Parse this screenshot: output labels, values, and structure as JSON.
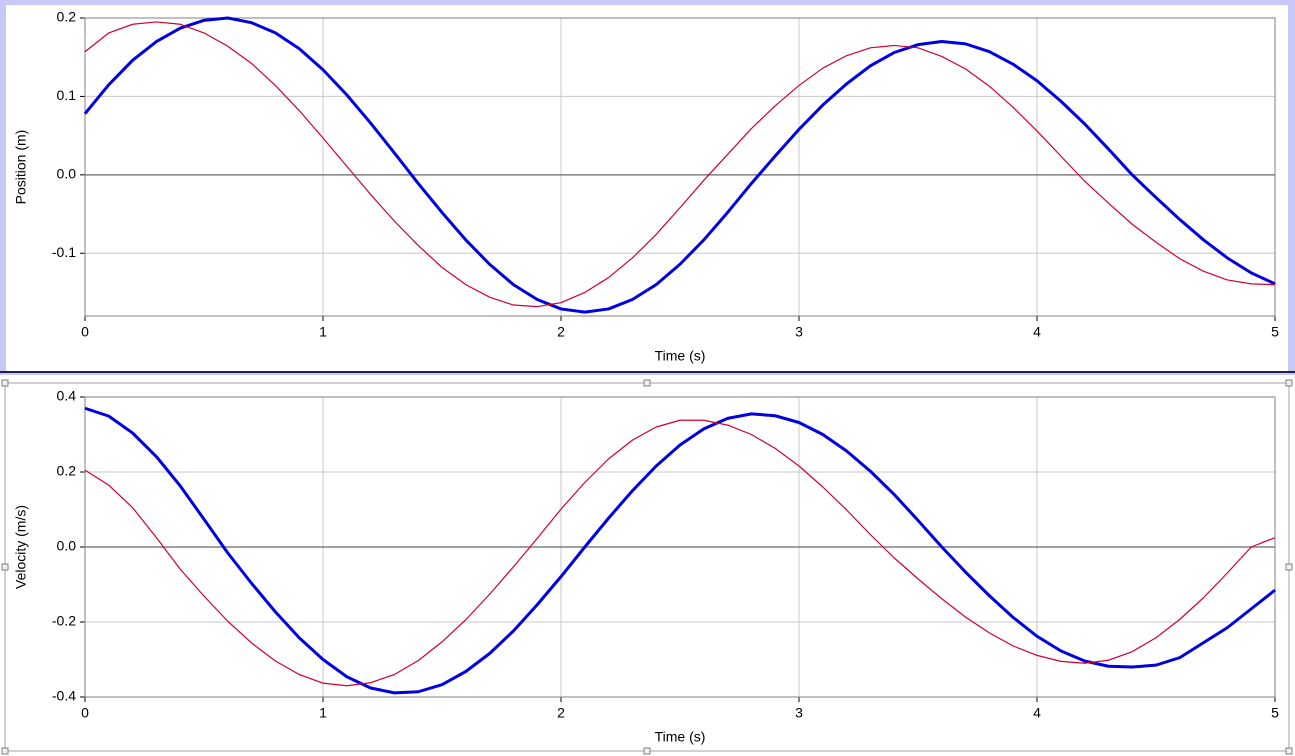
{
  "chart_data": [
    {
      "type": "line",
      "xlabel": "Time (s)",
      "ylabel": "Position (m)",
      "x": [
        0,
        0.1,
        0.2,
        0.3,
        0.4,
        0.5,
        0.6,
        0.7,
        0.8,
        0.9,
        1,
        1.1,
        1.2,
        1.3,
        1.4,
        1.5,
        1.6,
        1.7,
        1.8,
        1.9,
        2,
        2.1,
        2.2,
        2.3,
        2.4,
        2.5,
        2.6,
        2.7,
        2.8,
        2.9,
        3,
        3.1,
        3.2,
        3.3,
        3.4,
        3.5,
        3.6,
        3.7,
        3.8,
        3.9,
        4,
        4.1,
        4.2,
        4.3,
        4.4,
        4.5,
        4.6,
        4.7,
        4.8,
        4.9,
        5
      ],
      "series": [
        {
          "color": "#0000e0",
          "values": [
            0.078,
            0.115,
            0.146,
            0.17,
            0.187,
            0.197,
            0.2,
            0.194,
            0.181,
            0.161,
            0.134,
            0.102,
            0.066,
            0.028,
            -0.011,
            -0.048,
            -0.083,
            -0.114,
            -0.14,
            -0.159,
            -0.171,
            -0.175,
            -0.171,
            -0.159,
            -0.14,
            -0.114,
            -0.083,
            -0.048,
            -0.011,
            0.024,
            0.058,
            0.089,
            0.116,
            0.139,
            0.156,
            0.166,
            0.17,
            0.167,
            0.157,
            0.141,
            0.12,
            0.094,
            0.065,
            0.033,
            0,
            -0.029,
            -0.057,
            -0.083,
            -0.106,
            -0.125,
            -0.139
          ]
        },
        {
          "color": "#d00030",
          "values": [
            0.157,
            0.181,
            0.192,
            0.195,
            0.192,
            0.181,
            0.164,
            0.142,
            0.114,
            0.082,
            0.047,
            0.011,
            -0.025,
            -0.059,
            -0.09,
            -0.118,
            -0.14,
            -0.156,
            -0.166,
            -0.168,
            -0.163,
            -0.15,
            -0.131,
            -0.106,
            -0.076,
            -0.042,
            -0.007,
            0.026,
            0.059,
            0.088,
            0.114,
            0.136,
            0.152,
            0.162,
            0.165,
            0.162,
            0.151,
            0.135,
            0.113,
            0.086,
            0.056,
            0.024,
            -0.008,
            -0.036,
            -0.063,
            -0.086,
            -0.107,
            -0.123,
            -0.134,
            -0.139,
            -0.14
          ]
        }
      ],
      "xlim": [
        0,
        5
      ],
      "ylim": [
        -0.18,
        0.2
      ],
      "xticks": [
        0,
        1,
        2,
        3,
        4,
        5
      ],
      "yticks": [
        0.2,
        0.1,
        {
          "value": 0,
          "label": "0.0"
        },
        -0.1
      ],
      "grid": true
    },
    {
      "type": "line",
      "xlabel": "Time (s)",
      "ylabel": "Velocity (m/s)",
      "x": [
        0,
        0.1,
        0.2,
        0.3,
        0.4,
        0.5,
        0.6,
        0.7,
        0.8,
        0.9,
        1,
        1.1,
        1.2,
        1.3,
        1.4,
        1.5,
        1.6,
        1.7,
        1.8,
        1.9,
        2,
        2.1,
        2.2,
        2.3,
        2.4,
        2.5,
        2.6,
        2.7,
        2.8,
        2.9,
        3,
        3.1,
        3.2,
        3.3,
        3.4,
        3.5,
        3.6,
        3.7,
        3.8,
        3.9,
        4,
        4.1,
        4.2,
        4.3,
        4.4,
        4.5,
        4.6,
        4.7,
        4.8,
        4.9,
        5
      ],
      "series": [
        {
          "color": "#0000e0",
          "values": [
            0.37,
            0.349,
            0.304,
            0.241,
            0.163,
            0.074,
            -0.016,
            -0.097,
            -0.173,
            -0.242,
            -0.3,
            -0.346,
            -0.376,
            -0.389,
            -0.386,
            -0.367,
            -0.332,
            -0.284,
            -0.224,
            -0.154,
            -0.079,
            0,
            0.077,
            0.15,
            0.216,
            0.272,
            0.315,
            0.343,
            0.355,
            0.35,
            0.332,
            0.3,
            0.256,
            0.202,
            0.14,
            0.071,
            0,
            -0.067,
            -0.13,
            -0.188,
            -0.238,
            -0.277,
            -0.304,
            -0.318,
            -0.32,
            -0.315,
            -0.295,
            -0.255,
            -0.215,
            -0.165,
            -0.115
          ]
        },
        {
          "color": "#d00030",
          "values": [
            0.205,
            0.165,
            0.105,
            0.025,
            -0.059,
            -0.131,
            -0.198,
            -0.256,
            -0.304,
            -0.34,
            -0.363,
            -0.37,
            -0.362,
            -0.34,
            -0.303,
            -0.253,
            -0.194,
            -0.126,
            -0.053,
            0.023,
            0.101,
            0.172,
            0.235,
            0.285,
            0.32,
            0.338,
            0.338,
            0.325,
            0.3,
            0.263,
            0.216,
            0.16,
            0.099,
            0.033,
            -0.029,
            -0.085,
            -0.138,
            -0.187,
            -0.229,
            -0.264,
            -0.289,
            -0.305,
            -0.31,
            -0.302,
            -0.279,
            -0.242,
            -0.193,
            -0.135,
            -0.069,
            0,
            0.025
          ]
        }
      ],
      "xlim": [
        0,
        5
      ],
      "ylim": [
        -0.4,
        0.4
      ],
      "xticks": [
        0,
        1,
        2,
        3,
        4,
        5
      ],
      "yticks": [
        0.4,
        0.2,
        {
          "value": 0,
          "label": "0.0"
        },
        -0.2,
        -0.4
      ],
      "grid": true
    }
  ]
}
